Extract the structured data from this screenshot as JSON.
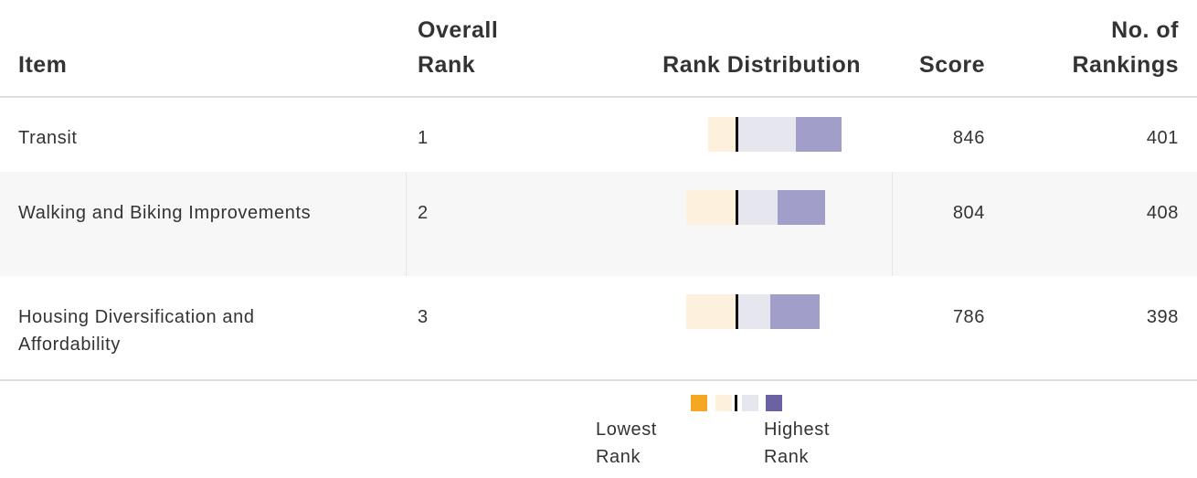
{
  "table": {
    "headers": [
      "Item",
      "Overall Rank",
      "Rank Distribution",
      "Score",
      "No. of Rankings"
    ],
    "segment_colors": [
      "#f5a623",
      "#fdf0dc",
      "#e6e6ef",
      "#a19ec9"
    ],
    "rows": [
      {
        "item": "Transit",
        "rank": 1,
        "distribution": [
          0,
          31,
          65,
          50
        ],
        "score": 846,
        "rankings": 401
      },
      {
        "item": "Walking and Biking Improvements",
        "rank": 2,
        "distribution": [
          0,
          55,
          45,
          52
        ],
        "score": 804,
        "rankings": 408
      },
      {
        "item": "Housing Diversification and Affordability",
        "rank": 3,
        "distribution": [
          0,
          55,
          37,
          54
        ],
        "score": 786,
        "rankings": 398
      }
    ]
  },
  "legend": {
    "colors": [
      "#f5a623",
      "#fdf0dc",
      "#e6e6ef",
      "#6a62a2"
    ],
    "low_label": "Lowest Rank",
    "high_label": "Highest Rank"
  }
}
